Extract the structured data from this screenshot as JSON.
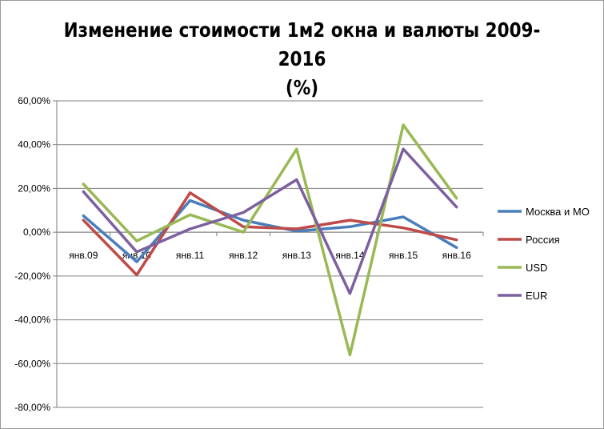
{
  "chart_data": {
    "type": "line",
    "title_lines": [
      "Изменение стоимости 1м2 окна и валюты 2009-2016",
      "(%)"
    ],
    "categories": [
      "янв.09",
      "янв.10",
      "янв.11",
      "янв.12",
      "янв.13",
      "янв.14",
      "янв.15",
      "янв.16"
    ],
    "ylim": [
      -80,
      60
    ],
    "yticks": [
      {
        "value": 60,
        "label": "60,00%"
      },
      {
        "value": 40,
        "label": "40,00%"
      },
      {
        "value": 20,
        "label": "20,00%"
      },
      {
        "value": 0,
        "label": "0,00%"
      },
      {
        "value": -20,
        "label": "-20,00%"
      },
      {
        "value": -40,
        "label": "-40,00%"
      },
      {
        "value": -60,
        "label": "-60,00%"
      },
      {
        "value": -80,
        "label": "-80,00%"
      }
    ],
    "grid": true,
    "legend_position": "right",
    "series": [
      {
        "name": "Москва и МО",
        "color": "#4a7ebb",
        "values": [
          7.5,
          -13.5,
          14.5,
          5.5,
          0.5,
          2.5,
          7,
          -7
        ]
      },
      {
        "name": "Россия",
        "color": "#be4b48",
        "values": [
          5.5,
          -19.5,
          18,
          2.5,
          1.5,
          5.5,
          2,
          -3.5
        ]
      },
      {
        "name": "USD",
        "color": "#98b954",
        "values": [
          22,
          -4,
          8,
          0,
          38,
          -56,
          49,
          15.5
        ]
      },
      {
        "name": "EUR",
        "color": "#7d60a0",
        "values": [
          18.5,
          -9,
          1.5,
          9,
          24,
          -28,
          38,
          11.5
        ]
      }
    ]
  }
}
